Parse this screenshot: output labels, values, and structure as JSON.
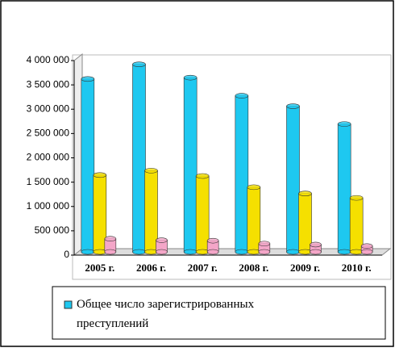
{
  "chart_data": {
    "type": "bar",
    "categories": [
      "2005 г.",
      "2006 г.",
      "2007 г.",
      "2008 г.",
      "2009 г.",
      "2010 г."
    ],
    "series": [
      {
        "name": "Общее число зарегистрированных преступлений",
        "color": "#1ec8f0",
        "values": [
          3554738,
          3855373,
          3582541,
          3209862,
          2994820,
          2628799
        ]
      },
      {
        "color": "#f5e000",
        "values": [
          1580000,
          1670000,
          1560000,
          1330000,
          1200000,
          1110000
        ]
      },
      {
        "color": "#f4a6c8",
        "values": [
          270000,
          240000,
          230000,
          170000,
          150000,
          120000
        ]
      }
    ],
    "ylim": [
      0,
      4000000
    ],
    "yticks": [
      0,
      {
        "value": 500000,
        "label": "500 000"
      },
      {
        "value": 1000000,
        "label": "1 000 000"
      },
      {
        "value": 1500000,
        "label": "1 500 000"
      },
      {
        "value": 2000000,
        "label": "2 000 000"
      },
      {
        "value": 2500000,
        "label": "2 500 000"
      },
      {
        "value": 3000000,
        "label": "3 000 000"
      },
      {
        "value": 3500000,
        "label": "3 500 000"
      },
      {
        "value": 4000000,
        "label": "4 000 000"
      }
    ]
  }
}
